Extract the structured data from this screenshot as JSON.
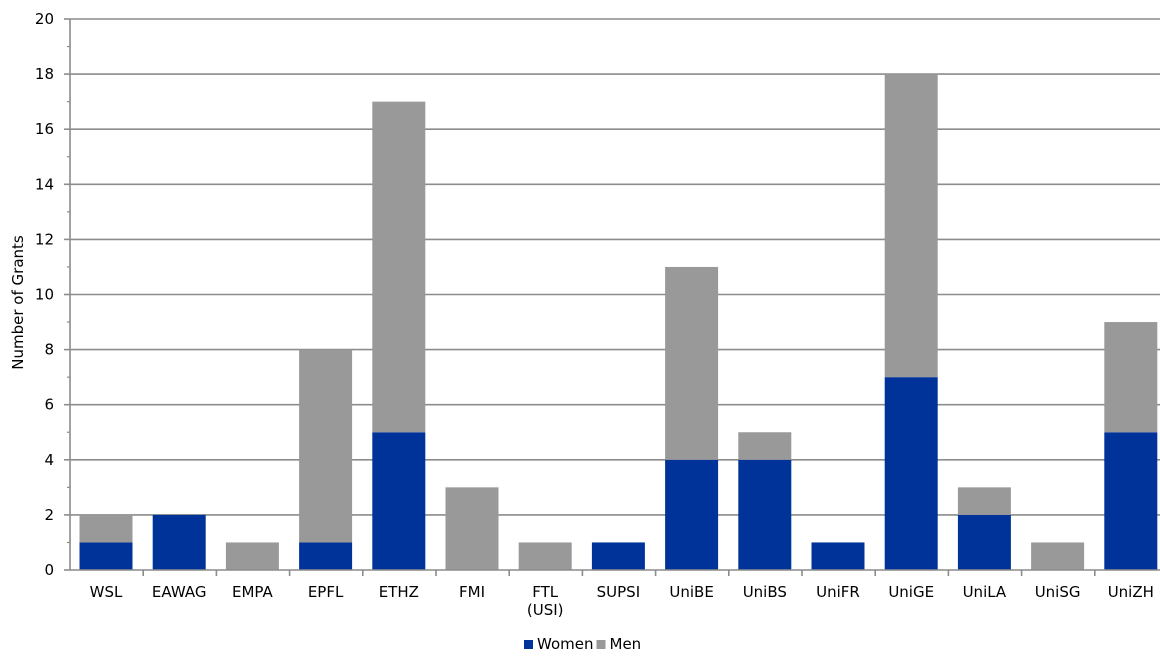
{
  "chart_data": {
    "type": "bar",
    "stacked": true,
    "title": "",
    "xlabel": "",
    "ylabel": "Number of Grants",
    "ylim": [
      0,
      20
    ],
    "yticks": [
      0,
      2,
      4,
      6,
      8,
      10,
      12,
      14,
      16,
      18,
      20
    ],
    "grid": true,
    "legend_position": "bottom",
    "categories": [
      "WSL",
      "EAWAG",
      "EMPA",
      "EPFL",
      "ETHZ",
      "FMI",
      "FTL\n(USI)",
      "SUPSI",
      "UniBE",
      "UniBS",
      "UniFR",
      "UniGE",
      "UniLA",
      "UniSG",
      "UniZH"
    ],
    "series": [
      {
        "name": "Women",
        "color": "#003399",
        "values": [
          1,
          2,
          0,
          1,
          5,
          0,
          0,
          1,
          4,
          4,
          1,
          7,
          2,
          0,
          5
        ]
      },
      {
        "name": "Men",
        "color": "#999999",
        "values": [
          1,
          0,
          1,
          7,
          12,
          3,
          1,
          0,
          7,
          1,
          0,
          11,
          1,
          1,
          4
        ]
      }
    ]
  }
}
